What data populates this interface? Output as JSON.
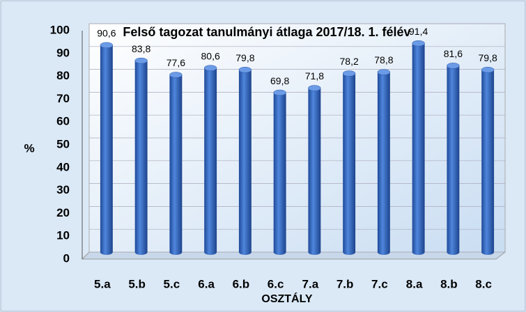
{
  "chart_data": {
    "type": "bar",
    "title": "Felső tagozat tanulmányi átlaga 2017/18. 1. félév",
    "x_label": "OSZTÁLY",
    "y_label": "%",
    "categories": [
      "5.a",
      "5.b",
      "5.c",
      "6.a",
      "6.b",
      "6.c",
      "7.a",
      "7.b",
      "7.c",
      "8.a",
      "8.b",
      "8.c"
    ],
    "values": [
      90.6,
      83.8,
      77.6,
      80.6,
      79.8,
      69.8,
      71.8,
      78.2,
      78.8,
      91.4,
      81.6,
      79.8
    ],
    "value_labels": [
      "90,6",
      "83,8",
      "77,6",
      "80,6",
      "79,8",
      "69,8",
      "71,8",
      "78,2",
      "78,8",
      "91,4",
      "81,6",
      "79,8"
    ],
    "color": "#3567c0",
    "ylim": [
      0,
      100
    ],
    "yticks": [
      0,
      10,
      20,
      30,
      40,
      50,
      60,
      70,
      80,
      90,
      100
    ],
    "grid": true
  }
}
